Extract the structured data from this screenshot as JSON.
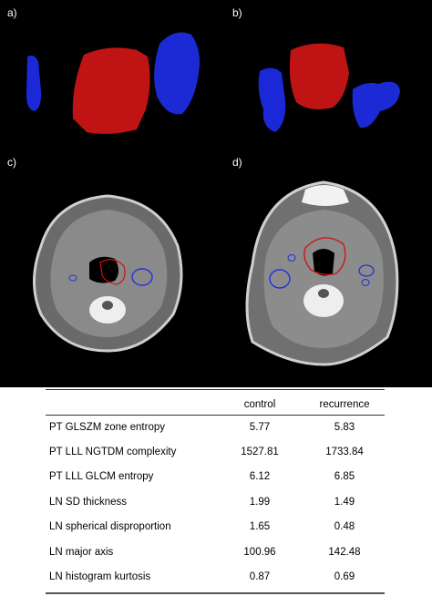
{
  "panels": {
    "a": "a)",
    "b": "b)",
    "c": "c)",
    "d": "d)"
  },
  "colors": {
    "tumor": "#c81414",
    "lymph_node": "#1a28d8",
    "background": "#000000"
  },
  "table": {
    "headers": [
      "",
      "control",
      "recurrence"
    ],
    "rows": [
      {
        "feature": "PT GLSZM zone entropy",
        "control": "5.77",
        "recurrence": "5.83"
      },
      {
        "feature": "PT LLL NGTDM complexity",
        "control": "1527.81",
        "recurrence": "1733.84"
      },
      {
        "feature": "PT LLL GLCM entropy",
        "control": "6.12",
        "recurrence": "6.85"
      },
      {
        "feature": "LN SD thickness",
        "control": "1.99",
        "recurrence": "1.49"
      },
      {
        "feature": "LN spherical disproportion",
        "control": "1.65",
        "recurrence": "0.48"
      },
      {
        "feature": "LN major axis",
        "control": "100.96",
        "recurrence": "142.48"
      },
      {
        "feature": "LN histogram kurtosis",
        "control": "0.87",
        "recurrence": "0.69"
      }
    ]
  }
}
